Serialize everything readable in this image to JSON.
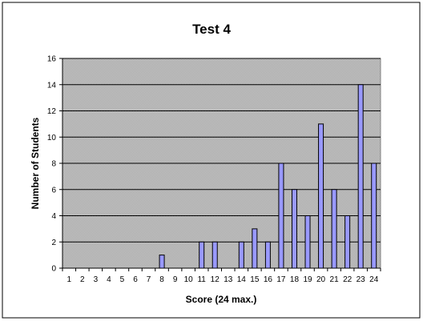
{
  "chart_data": {
    "type": "bar",
    "title": "Test 4",
    "xlabel": "Score (24 max.)",
    "ylabel": "Number of Students",
    "categories": [
      "1",
      "2",
      "3",
      "4",
      "5",
      "6",
      "7",
      "8",
      "9",
      "10",
      "11",
      "12",
      "13",
      "14",
      "15",
      "16",
      "17",
      "18",
      "19",
      "20",
      "21",
      "22",
      "23",
      "24"
    ],
    "values": [
      0,
      0,
      0,
      0,
      0,
      0,
      0,
      1,
      0,
      0,
      2,
      2,
      0,
      2,
      3,
      2,
      8,
      6,
      4,
      11,
      6,
      4,
      14,
      8
    ],
    "ylim": [
      0,
      16
    ],
    "yticks": [
      "0",
      "2",
      "4",
      "6",
      "8",
      "10",
      "12",
      "14",
      "16"
    ],
    "grid": true,
    "legend": "none",
    "colors": {
      "bar_fill": "#9999ff",
      "bar_stroke": "#000000",
      "plot_background": "#c0c0c0",
      "gridline": "#000000"
    }
  }
}
